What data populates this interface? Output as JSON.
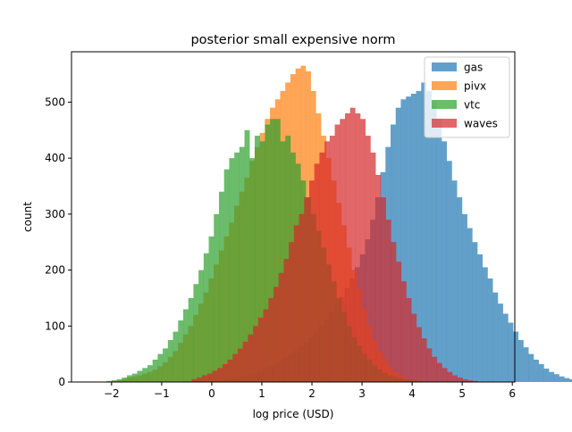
{
  "chart_data": {
    "type": "histogram",
    "title": "posterior small expensive norm",
    "xlabel": "log price (USD)",
    "ylabel": "count",
    "xlim": [
      -2.8,
      6.05
    ],
    "ylim": [
      0,
      590
    ],
    "x_ticks": [
      -2,
      -1,
      0,
      1,
      2,
      3,
      4,
      5,
      6
    ],
    "y_ticks": [
      0,
      100,
      200,
      300,
      400,
      500
    ],
    "grid": false,
    "legend_position": "top-right",
    "opacity": 0.7,
    "series": [
      {
        "name": "gas",
        "color": "#1f77b4",
        "bin_start": 0.0,
        "bin_width": 0.102,
        "counts": [
          2,
          3,
          5,
          6,
          8,
          10,
          12,
          14,
          16,
          20,
          24,
          28,
          32,
          38,
          44,
          50,
          57,
          64,
          72,
          80,
          90,
          100,
          112,
          124,
          138,
          152,
          168,
          185,
          205,
          228,
          255,
          290,
          330,
          375,
          420,
          460,
          490,
          505,
          510,
          515,
          520,
          535,
          520,
          500,
          470,
          430,
          395,
          360,
          330,
          300,
          275,
          250,
          228,
          205,
          185,
          160,
          140,
          122,
          106,
          90,
          75,
          62,
          50,
          40,
          32,
          24,
          18,
          14,
          10,
          7,
          5,
          3
        ]
      },
      {
        "name": "pivx",
        "color": "#ff7f0e",
        "bin_start": -2.0,
        "bin_width": 0.102,
        "counts": [
          2,
          3,
          5,
          8,
          10,
          12,
          15,
          18,
          22,
          28,
          35,
          45,
          55,
          70,
          85,
          100,
          120,
          140,
          160,
          185,
          210,
          235,
          260,
          285,
          315,
          340,
          365,
          395,
          420,
          445,
          470,
          490,
          505,
          520,
          535,
          550,
          560,
          565,
          555,
          520,
          480,
          440,
          400,
          360,
          320,
          280,
          240,
          200,
          165,
          130,
          100,
          75,
          55,
          40,
          28,
          18,
          12,
          7,
          4,
          2
        ]
      },
      {
        "name": "vtc",
        "color": "#2ca02c",
        "bin_start": -2.1,
        "bin_width": 0.102,
        "counts": [
          2,
          3,
          5,
          8,
          12,
          15,
          20,
          25,
          30,
          40,
          50,
          60,
          75,
          90,
          110,
          130,
          150,
          175,
          200,
          230,
          260,
          300,
          340,
          380,
          400,
          410,
          420,
          450,
          400,
          440,
          430,
          460,
          470,
          470,
          430,
          440,
          410,
          390,
          360,
          330,
          300,
          270,
          240,
          210,
          180,
          150,
          125,
          100,
          80,
          65,
          50,
          40,
          30,
          22,
          16,
          12,
          9,
          7,
          5,
          4,
          3,
          2
        ]
      },
      {
        "name": "waves",
        "color": "#d62728",
        "bin_start": -0.4,
        "bin_width": 0.102,
        "counts": [
          5,
          8,
          12,
          15,
          20,
          25,
          32,
          40,
          50,
          60,
          72,
          85,
          100,
          115,
          130,
          150,
          170,
          195,
          220,
          250,
          280,
          300,
          330,
          360,
          390,
          410,
          430,
          440,
          460,
          470,
          480,
          490,
          480,
          470,
          440,
          410,
          370,
          330,
          290,
          250,
          215,
          180,
          150,
          122,
          98,
          78,
          60,
          45,
          34,
          25,
          18,
          12,
          8,
          5,
          3,
          2
        ]
      }
    ]
  }
}
